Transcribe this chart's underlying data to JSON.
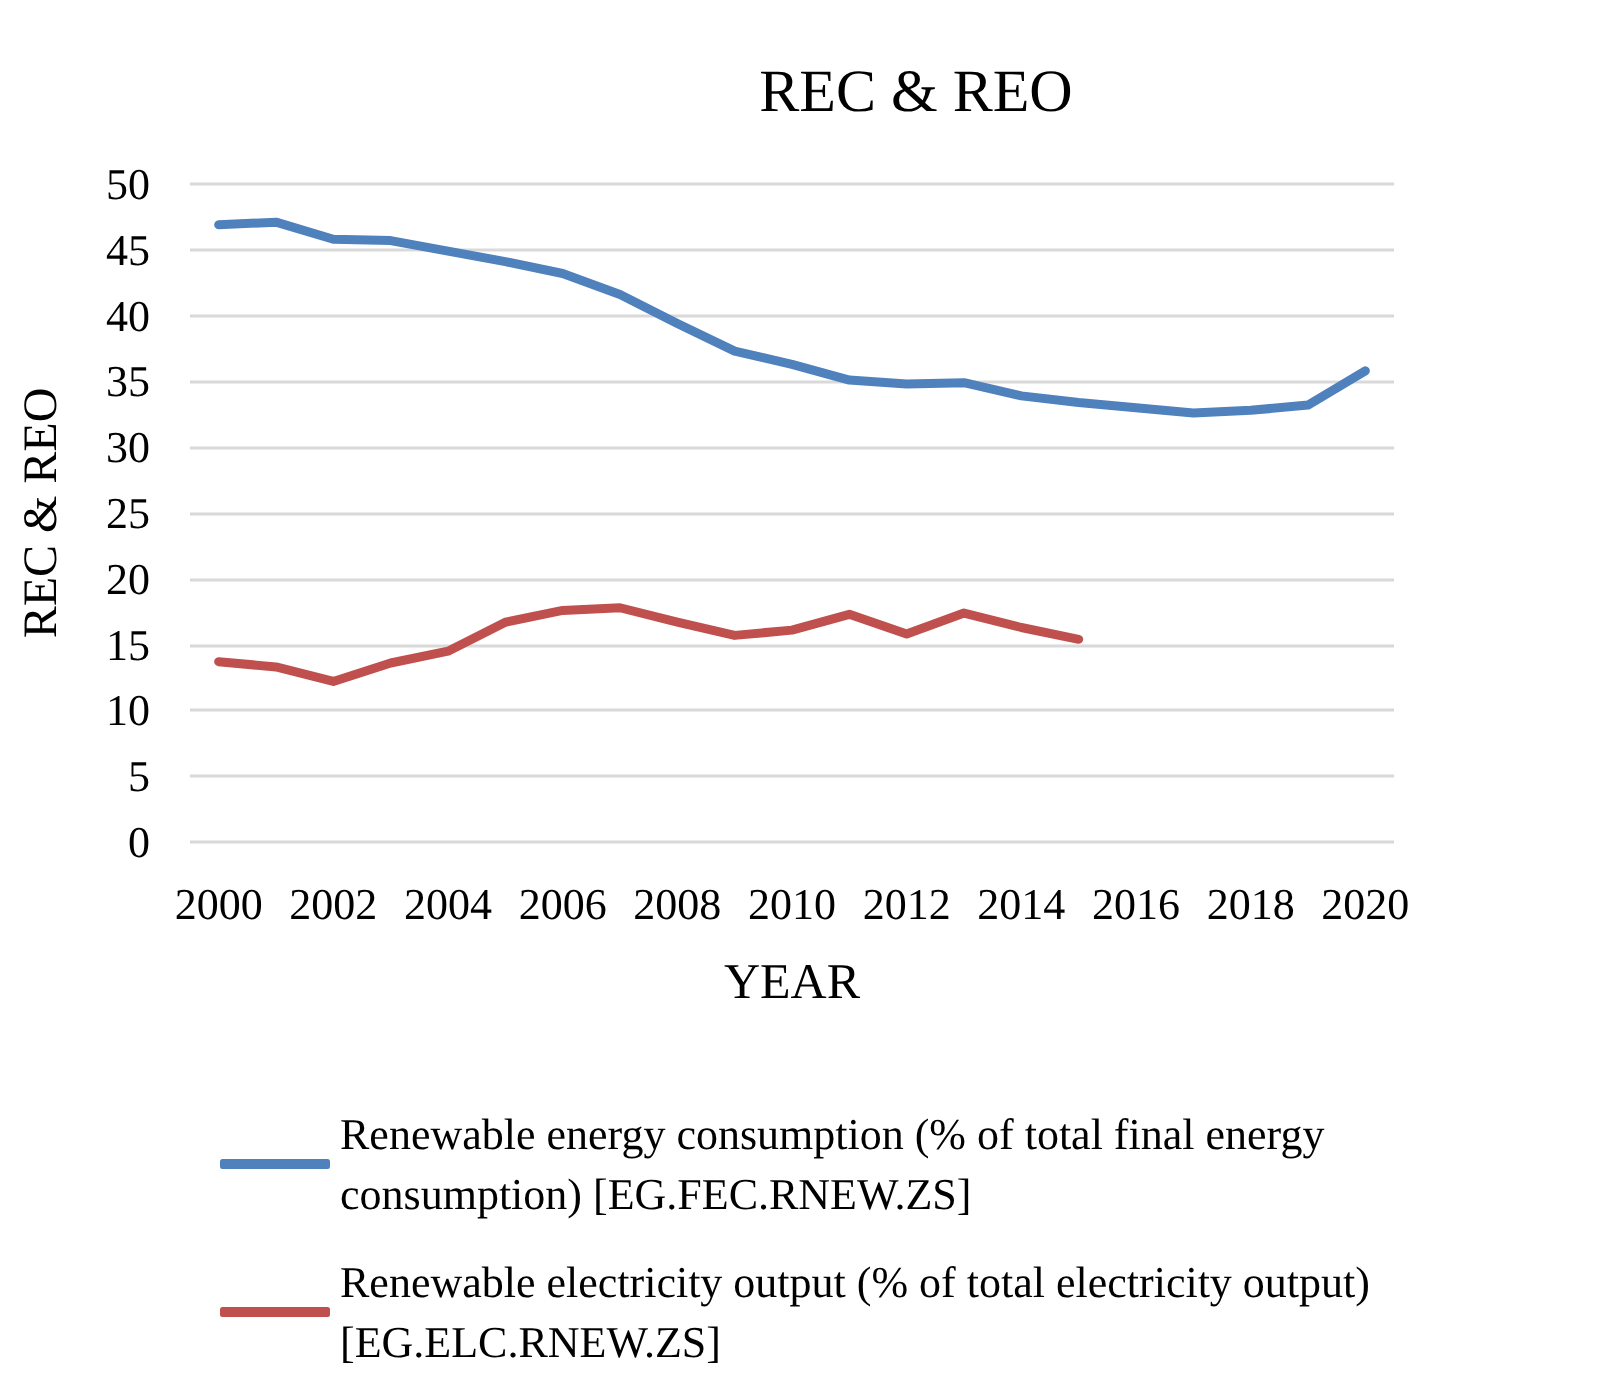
{
  "chart_data": {
    "type": "line",
    "title": "REC & REO",
    "xlabel": "YEAR",
    "ylabel": "REC & REO",
    "x": [
      2000,
      2001,
      2002,
      2003,
      2004,
      2005,
      2006,
      2007,
      2008,
      2009,
      2010,
      2011,
      2012,
      2013,
      2014,
      2015,
      2016,
      2017,
      2018,
      2019,
      2020
    ],
    "xlim": [
      1999.5,
      2020.5
    ],
    "xticks": [
      2000,
      2002,
      2004,
      2006,
      2008,
      2010,
      2012,
      2014,
      2016,
      2018,
      2020
    ],
    "ylim": [
      0,
      50
    ],
    "yticks": [
      0,
      5,
      10,
      15,
      20,
      25,
      30,
      35,
      40,
      45,
      50
    ],
    "grid": "y",
    "legend": "bottom",
    "marker": "none",
    "line_style": "solid",
    "series": [
      {
        "name": "Renewable energy consumption (% of total final energy consumption) [EG.FEC.RNEW.ZS]",
        "color": "#4f81bd",
        "values": [
          46.9,
          47.1,
          45.8,
          45.7,
          44.9,
          44.1,
          43.2,
          41.6,
          39.4,
          37.3,
          36.3,
          35.1,
          34.8,
          34.9,
          33.9,
          33.4,
          33.0,
          32.6,
          32.8,
          33.2,
          35.8
        ]
      },
      {
        "name": "Renewable electricity output (% of total electricity output) [EG.ELC.RNEW.ZS]",
        "color": "#c0504d",
        "values": [
          13.7,
          13.3,
          12.2,
          13.6,
          14.5,
          16.7,
          17.6,
          17.8,
          16.7,
          15.7,
          16.1,
          17.3,
          15.8,
          17.4,
          16.3,
          15.4,
          null,
          null,
          null,
          null,
          null
        ]
      }
    ]
  }
}
